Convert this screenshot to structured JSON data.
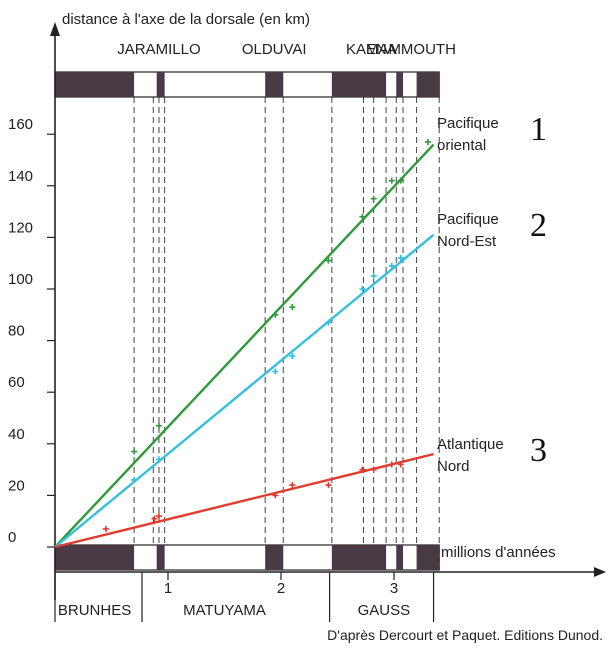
{
  "chart_data": {
    "type": "line",
    "ylabel": "distance à l'axe de la dorsale (en km)",
    "xlabel": "millions d'années",
    "xlim": [
      0,
      3.4
    ],
    "ylim": [
      0,
      170
    ],
    "x_ticks": [
      1,
      2,
      3
    ],
    "y_ticks": [
      0,
      20,
      40,
      60,
      80,
      100,
      120,
      140,
      160
    ],
    "series": [
      {
        "name": "Pacifique oriental",
        "number": "1",
        "name_lines": [
          "Pacifique",
          "oriental"
        ],
        "color": "#2e9a3a",
        "line": [
          [
            0,
            0
          ],
          [
            3.35,
            156
          ]
        ],
        "points": [
          [
            0.7,
            37
          ],
          [
            0.92,
            47
          ],
          [
            1.95,
            90
          ],
          [
            2.1,
            93
          ],
          [
            2.42,
            111
          ],
          [
            2.72,
            128
          ],
          [
            2.82,
            135
          ],
          [
            2.98,
            142
          ],
          [
            3.06,
            142
          ],
          [
            3.3,
            157
          ]
        ]
      },
      {
        "name": "Pacifique Nord-Est",
        "number": "2",
        "name_lines": [
          "Pacifique",
          "Nord-Est"
        ],
        "color": "#33c0e0",
        "line": [
          [
            0,
            0
          ],
          [
            3.35,
            121
          ]
        ],
        "points": [
          [
            0.7,
            26
          ],
          [
            0.92,
            34
          ],
          [
            1.95,
            68
          ],
          [
            2.1,
            74
          ],
          [
            2.42,
            87
          ],
          [
            2.72,
            100
          ],
          [
            2.82,
            105
          ],
          [
            2.98,
            109
          ],
          [
            3.06,
            112
          ]
        ]
      },
      {
        "name": "Atlantique Nord",
        "number": "3",
        "name_lines": [
          "Atlantique",
          "Nord"
        ],
        "color": "#e03b2c",
        "line": [
          [
            0,
            0
          ],
          [
            3.35,
            36
          ]
        ],
        "points": [
          [
            0.45,
            7
          ],
          [
            0.88,
            11
          ],
          [
            0.92,
            12
          ],
          [
            1.95,
            20
          ],
          [
            2.1,
            24
          ],
          [
            2.42,
            24
          ],
          [
            2.72,
            30
          ],
          [
            2.82,
            30
          ],
          [
            2.98,
            32
          ],
          [
            3.06,
            32
          ]
        ]
      }
    ],
    "normal_polarity_periods": [
      [
        0,
        0.7
      ],
      [
        0.9,
        0.97
      ],
      [
        1.86,
        2.02
      ],
      [
        2.45,
        2.93
      ],
      [
        3.02,
        3.08
      ],
      [
        3.2,
        3.4
      ]
    ],
    "guide_lines_x": [
      0.7,
      0.87,
      0.92,
      0.97,
      1.86,
      2.02,
      2.45,
      2.73,
      2.82,
      2.93,
      3.02,
      3.08,
      3.2,
      3.4
    ],
    "event_labels": [
      {
        "text": "JARAMILLO",
        "x": 0.92
      },
      {
        "text": "OLDUVAI",
        "x": 1.94
      },
      {
        "text": "KAENA",
        "x": 2.8
      },
      {
        "text": "MAMMOUTH",
        "x": 3.15
      }
    ],
    "epoch_labels": [
      {
        "text": "BRUNHES",
        "x": 0.35
      },
      {
        "text": "MATUYAMA",
        "x": 1.5
      },
      {
        "text": "GAUSS",
        "x": 2.91
      }
    ],
    "epoch_boundaries": [
      0,
      0.77,
      2.43,
      3.35
    ],
    "credit": "D'après Dercourt et Paquet. Editions Dunod.",
    "colors": {
      "axis": "#222222",
      "polarity_band": "#4a3a46",
      "guide": "#444444"
    }
  }
}
